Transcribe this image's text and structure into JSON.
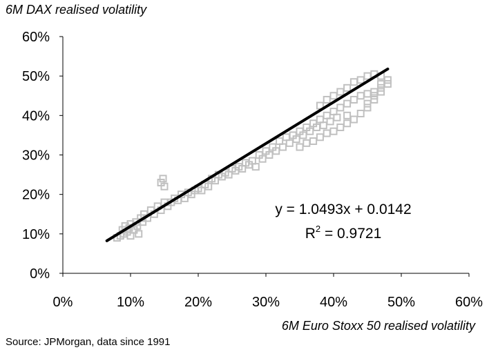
{
  "chart_data": {
    "type": "scatter",
    "ylabel": "6M DAX  realised volatility",
    "xlabel": "6M Euro Stoxx 50 realised volatility",
    "source": "Source: JPMorgan, data since 1991",
    "xlim": [
      0,
      0.6
    ],
    "ylim": [
      0,
      0.6
    ],
    "x_ticks": [
      "0%",
      "10%",
      "20%",
      "30%",
      "40%",
      "50%",
      "60%"
    ],
    "y_ticks": [
      "0%",
      "10%",
      "20%",
      "30%",
      "40%",
      "50%",
      "60%"
    ],
    "grid": false,
    "series": [
      {
        "marker": "hollow-square",
        "color": "#c0c0c0",
        "points": [
          [
            0.08,
            0.09
          ],
          [
            0.085,
            0.095
          ],
          [
            0.088,
            0.11
          ],
          [
            0.09,
            0.1
          ],
          [
            0.092,
            0.12
          ],
          [
            0.095,
            0.105
          ],
          [
            0.098,
            0.115
          ],
          [
            0.1,
            0.125
          ],
          [
            0.1,
            0.095
          ],
          [
            0.105,
            0.11
          ],
          [
            0.108,
            0.13
          ],
          [
            0.11,
            0.12
          ],
          [
            0.112,
            0.1
          ],
          [
            0.115,
            0.14
          ],
          [
            0.118,
            0.13
          ],
          [
            0.12,
            0.15
          ],
          [
            0.125,
            0.14
          ],
          [
            0.13,
            0.16
          ],
          [
            0.135,
            0.15
          ],
          [
            0.14,
            0.17
          ],
          [
            0.145,
            0.16
          ],
          [
            0.15,
            0.18
          ],
          [
            0.145,
            0.23
          ],
          [
            0.148,
            0.24
          ],
          [
            0.15,
            0.22
          ],
          [
            0.155,
            0.17
          ],
          [
            0.16,
            0.18
          ],
          [
            0.165,
            0.19
          ],
          [
            0.17,
            0.185
          ],
          [
            0.175,
            0.2
          ],
          [
            0.18,
            0.19
          ],
          [
            0.185,
            0.205
          ],
          [
            0.19,
            0.2
          ],
          [
            0.195,
            0.21
          ],
          [
            0.2,
            0.215
          ],
          [
            0.205,
            0.21
          ],
          [
            0.21,
            0.225
          ],
          [
            0.215,
            0.22
          ],
          [
            0.22,
            0.24
          ],
          [
            0.225,
            0.235
          ],
          [
            0.23,
            0.25
          ],
          [
            0.235,
            0.245
          ],
          [
            0.24,
            0.255
          ],
          [
            0.245,
            0.25
          ],
          [
            0.25,
            0.265
          ],
          [
            0.255,
            0.26
          ],
          [
            0.26,
            0.27
          ],
          [
            0.265,
            0.265
          ],
          [
            0.27,
            0.28
          ],
          [
            0.275,
            0.275
          ],
          [
            0.28,
            0.285
          ],
          [
            0.285,
            0.27
          ],
          [
            0.29,
            0.3
          ],
          [
            0.295,
            0.29
          ],
          [
            0.3,
            0.31
          ],
          [
            0.305,
            0.3
          ],
          [
            0.31,
            0.32
          ],
          [
            0.315,
            0.31
          ],
          [
            0.32,
            0.335
          ],
          [
            0.325,
            0.32
          ],
          [
            0.33,
            0.345
          ],
          [
            0.335,
            0.33
          ],
          [
            0.34,
            0.35
          ],
          [
            0.345,
            0.34
          ],
          [
            0.35,
            0.36
          ],
          [
            0.355,
            0.35
          ],
          [
            0.36,
            0.37
          ],
          [
            0.365,
            0.36
          ],
          [
            0.37,
            0.38
          ],
          [
            0.375,
            0.37
          ],
          [
            0.38,
            0.39
          ],
          [
            0.385,
            0.375
          ],
          [
            0.39,
            0.4
          ],
          [
            0.395,
            0.385
          ],
          [
            0.4,
            0.41
          ],
          [
            0.405,
            0.395
          ],
          [
            0.41,
            0.42
          ],
          [
            0.42,
            0.4
          ],
          [
            0.42,
            0.43
          ],
          [
            0.43,
            0.44
          ],
          [
            0.44,
            0.45
          ],
          [
            0.45,
            0.455
          ],
          [
            0.46,
            0.46
          ],
          [
            0.47,
            0.47
          ],
          [
            0.48,
            0.48
          ],
          [
            0.35,
            0.32
          ],
          [
            0.36,
            0.33
          ],
          [
            0.37,
            0.335
          ],
          [
            0.38,
            0.345
          ],
          [
            0.39,
            0.355
          ],
          [
            0.4,
            0.36
          ],
          [
            0.41,
            0.37
          ],
          [
            0.42,
            0.38
          ],
          [
            0.43,
            0.39
          ],
          [
            0.44,
            0.405
          ],
          [
            0.45,
            0.42
          ],
          [
            0.46,
            0.44
          ],
          [
            0.47,
            0.46
          ],
          [
            0.48,
            0.49
          ],
          [
            0.47,
            0.5
          ],
          [
            0.46,
            0.505
          ],
          [
            0.45,
            0.5
          ],
          [
            0.44,
            0.49
          ],
          [
            0.43,
            0.485
          ],
          [
            0.42,
            0.47
          ],
          [
            0.41,
            0.46
          ],
          [
            0.4,
            0.45
          ],
          [
            0.39,
            0.44
          ],
          [
            0.38,
            0.425
          ],
          [
            0.45,
            0.43
          ],
          [
            0.46,
            0.45
          ],
          [
            0.47,
            0.48
          ]
        ]
      }
    ],
    "trendline": {
      "slope": 1.0493,
      "intercept": 0.0142,
      "x_range": [
        0.065,
        0.48
      ],
      "equation": "y = 1.0493x + 0.0142",
      "r2_prefix": "R",
      "r2_sup": "2",
      "r2_value": " = 0.9721"
    }
  }
}
